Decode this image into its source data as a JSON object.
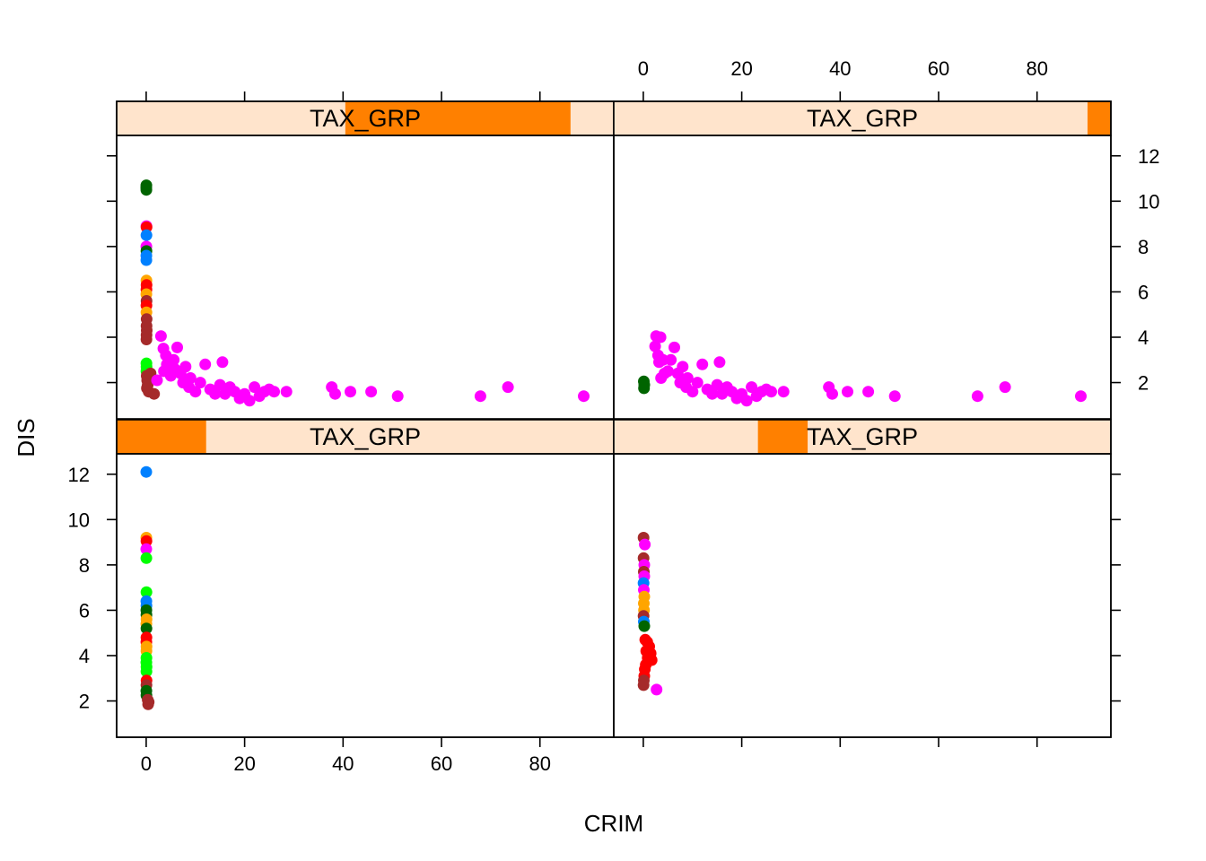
{
  "chart_data": {
    "type": "scatter",
    "layout": "trellis 2x2",
    "xlabel": "CRIM",
    "ylabel": "DIS",
    "xlim": [
      -6,
      95
    ],
    "ylim": [
      0.4,
      12.9
    ],
    "xticks": [
      0,
      20,
      40,
      60,
      80
    ],
    "yticks": [
      2,
      4,
      6,
      8,
      10,
      12
    ],
    "strip_fill": "#FFE4CC",
    "strip_bar": "#FF8000",
    "group_colors": {
      "g1": "#006400",
      "g2": "#0080FF",
      "g3": "#FF00FF",
      "g4": "#A52A2A",
      "g5": "#00FF00",
      "g6": "#FF0000",
      "g7": "#FFA500"
    },
    "panels": [
      {
        "id": "top-left",
        "strip_label": "TAX_GRP",
        "level_range": [
          0.46,
          0.913
        ],
        "points": [
          {
            "x": 0.02,
            "y": 10.6,
            "g": "g1"
          },
          {
            "x": 0.04,
            "y": 10.5,
            "g": "g1"
          },
          {
            "x": 0.03,
            "y": 10.7,
            "g": "g1"
          },
          {
            "x": 0.05,
            "y": 8.9,
            "g": "g3"
          },
          {
            "x": 0.08,
            "y": 8.85,
            "g": "g6"
          },
          {
            "x": 0.06,
            "y": 8.5,
            "g": "g2"
          },
          {
            "x": 0.04,
            "y": 8.0,
            "g": "g3"
          },
          {
            "x": 0.05,
            "y": 7.8,
            "g": "g1"
          },
          {
            "x": 0.03,
            "y": 7.6,
            "g": "g2"
          },
          {
            "x": 0.04,
            "y": 7.4,
            "g": "g2"
          },
          {
            "x": 0.06,
            "y": 6.5,
            "g": "g7"
          },
          {
            "x": 0.07,
            "y": 6.3,
            "g": "g6"
          },
          {
            "x": 0.05,
            "y": 6.1,
            "g": "g6"
          },
          {
            "x": 0.04,
            "y": 5.9,
            "g": "g7"
          },
          {
            "x": 0.08,
            "y": 5.6,
            "g": "g4"
          },
          {
            "x": 0.06,
            "y": 5.4,
            "g": "g6"
          },
          {
            "x": 0.05,
            "y": 5.1,
            "g": "g7"
          },
          {
            "x": 0.09,
            "y": 4.8,
            "g": "g4"
          },
          {
            "x": 0.07,
            "y": 4.5,
            "g": "g4"
          },
          {
            "x": 0.1,
            "y": 4.3,
            "g": "g4"
          },
          {
            "x": 0.08,
            "y": 4.1,
            "g": "g4"
          },
          {
            "x": 0.06,
            "y": 3.9,
            "g": "g4"
          },
          {
            "x": 0.05,
            "y": 2.85,
            "g": "g5"
          },
          {
            "x": 0.07,
            "y": 2.7,
            "g": "g5"
          },
          {
            "x": 0.06,
            "y": 2.5,
            "g": "g5"
          },
          {
            "x": 0.1,
            "y": 2.3,
            "g": "g4"
          },
          {
            "x": 0.2,
            "y": 2.1,
            "g": "g4"
          },
          {
            "x": 0.3,
            "y": 1.9,
            "g": "g4"
          },
          {
            "x": 0.15,
            "y": 1.75,
            "g": "g4"
          },
          {
            "x": 0.5,
            "y": 1.6,
            "g": "g4"
          },
          {
            "x": 1.6,
            "y": 1.5,
            "g": "g4"
          },
          {
            "x": 0.9,
            "y": 2.4,
            "g": "g4"
          },
          {
            "x": 2.2,
            "y": 2.1,
            "g": "g3"
          },
          {
            "x": 3.0,
            "y": 4.05,
            "g": "g3"
          },
          {
            "x": 3.5,
            "y": 3.5,
            "g": "g3"
          },
          {
            "x": 4.0,
            "y": 3.2,
            "g": "g3"
          },
          {
            "x": 4.2,
            "y": 2.8,
            "g": "g3"
          },
          {
            "x": 3.6,
            "y": 2.5,
            "g": "g3"
          },
          {
            "x": 5.0,
            "y": 2.3,
            "g": "g3"
          },
          {
            "x": 5.6,
            "y": 3.0,
            "g": "g3"
          },
          {
            "x": 5.8,
            "y": 2.6,
            "g": "g3"
          },
          {
            "x": 6.3,
            "y": 3.55,
            "g": "g3"
          },
          {
            "x": 7.0,
            "y": 2.4,
            "g": "g3"
          },
          {
            "x": 7.5,
            "y": 2.0,
            "g": "g3"
          },
          {
            "x": 8.0,
            "y": 2.7,
            "g": "g3"
          },
          {
            "x": 8.7,
            "y": 1.8,
            "g": "g3"
          },
          {
            "x": 9.0,
            "y": 2.2,
            "g": "g3"
          },
          {
            "x": 10.0,
            "y": 1.6,
            "g": "g3"
          },
          {
            "x": 11.0,
            "y": 2.0,
            "g": "g3"
          },
          {
            "x": 12.0,
            "y": 2.8,
            "g": "g3"
          },
          {
            "x": 13.0,
            "y": 1.7,
            "g": "g3"
          },
          {
            "x": 14.0,
            "y": 1.5,
            "g": "g3"
          },
          {
            "x": 15.0,
            "y": 1.9,
            "g": "g3"
          },
          {
            "x": 15.5,
            "y": 2.9,
            "g": "g3"
          },
          {
            "x": 16.0,
            "y": 1.5,
            "g": "g3"
          },
          {
            "x": 17.0,
            "y": 1.8,
            "g": "g3"
          },
          {
            "x": 18.0,
            "y": 1.6,
            "g": "g3"
          },
          {
            "x": 19.0,
            "y": 1.3,
            "g": "g3"
          },
          {
            "x": 20.0,
            "y": 1.5,
            "g": "g3"
          },
          {
            "x": 21.0,
            "y": 1.2,
            "g": "g3"
          },
          {
            "x": 22.0,
            "y": 1.8,
            "g": "g3"
          },
          {
            "x": 23.0,
            "y": 1.4,
            "g": "g3"
          },
          {
            "x": 24.0,
            "y": 1.6,
            "g": "g3"
          },
          {
            "x": 25.0,
            "y": 1.7,
            "g": "g3"
          },
          {
            "x": 26.0,
            "y": 1.6,
            "g": "g3"
          },
          {
            "x": 28.5,
            "y": 1.6,
            "g": "g3"
          },
          {
            "x": 37.7,
            "y": 1.8,
            "g": "g3"
          },
          {
            "x": 38.4,
            "y": 1.5,
            "g": "g3"
          },
          {
            "x": 41.5,
            "y": 1.6,
            "g": "g3"
          },
          {
            "x": 45.7,
            "y": 1.6,
            "g": "g3"
          },
          {
            "x": 51.1,
            "y": 1.4,
            "g": "g3"
          },
          {
            "x": 67.9,
            "y": 1.4,
            "g": "g3"
          },
          {
            "x": 73.5,
            "y": 1.8,
            "g": "g3"
          },
          {
            "x": 88.9,
            "y": 1.4,
            "g": "g3"
          }
        ]
      },
      {
        "id": "top-right",
        "strip_label": "TAX_GRP",
        "level_range": [
          0.953,
          1.0
        ],
        "points": [
          {
            "x": 0.1,
            "y": 2.05,
            "g": "g1"
          },
          {
            "x": 0.2,
            "y": 1.9,
            "g": "g1"
          },
          {
            "x": 0.15,
            "y": 1.75,
            "g": "g1"
          },
          {
            "x": 2.4,
            "y": 3.6,
            "g": "g3"
          },
          {
            "x": 2.6,
            "y": 4.05,
            "g": "g3"
          },
          {
            "x": 3.5,
            "y": 4.0,
            "g": "g3"
          },
          {
            "x": 3.0,
            "y": 3.2,
            "g": "g3"
          },
          {
            "x": 3.2,
            "y": 2.9,
            "g": "g3"
          },
          {
            "x": 4.0,
            "y": 3.0,
            "g": "g3"
          },
          {
            "x": 4.3,
            "y": 2.4,
            "g": "g3"
          },
          {
            "x": 3.6,
            "y": 2.2,
            "g": "g3"
          },
          {
            "x": 5.0,
            "y": 2.5,
            "g": "g3"
          },
          {
            "x": 5.6,
            "y": 3.0,
            "g": "g3"
          },
          {
            "x": 6.3,
            "y": 3.55,
            "g": "g3"
          },
          {
            "x": 7.0,
            "y": 2.4,
            "g": "g3"
          },
          {
            "x": 7.5,
            "y": 2.0,
            "g": "g3"
          },
          {
            "x": 8.0,
            "y": 2.7,
            "g": "g3"
          },
          {
            "x": 8.7,
            "y": 1.8,
            "g": "g3"
          },
          {
            "x": 9.0,
            "y": 2.2,
            "g": "g3"
          },
          {
            "x": 10.0,
            "y": 1.6,
            "g": "g3"
          },
          {
            "x": 11.0,
            "y": 2.0,
            "g": "g3"
          },
          {
            "x": 12.0,
            "y": 2.8,
            "g": "g3"
          },
          {
            "x": 13.0,
            "y": 1.7,
            "g": "g3"
          },
          {
            "x": 14.0,
            "y": 1.5,
            "g": "g3"
          },
          {
            "x": 15.0,
            "y": 1.9,
            "g": "g3"
          },
          {
            "x": 15.5,
            "y": 2.9,
            "g": "g3"
          },
          {
            "x": 16.0,
            "y": 1.5,
            "g": "g3"
          },
          {
            "x": 17.0,
            "y": 1.8,
            "g": "g3"
          },
          {
            "x": 18.0,
            "y": 1.6,
            "g": "g3"
          },
          {
            "x": 19.0,
            "y": 1.3,
            "g": "g3"
          },
          {
            "x": 20.0,
            "y": 1.5,
            "g": "g3"
          },
          {
            "x": 21.0,
            "y": 1.2,
            "g": "g3"
          },
          {
            "x": 22.0,
            "y": 1.8,
            "g": "g3"
          },
          {
            "x": 23.0,
            "y": 1.4,
            "g": "g3"
          },
          {
            "x": 24.0,
            "y": 1.6,
            "g": "g3"
          },
          {
            "x": 25.0,
            "y": 1.7,
            "g": "g3"
          },
          {
            "x": 26.0,
            "y": 1.6,
            "g": "g3"
          },
          {
            "x": 28.5,
            "y": 1.6,
            "g": "g3"
          },
          {
            "x": 37.7,
            "y": 1.8,
            "g": "g3"
          },
          {
            "x": 38.4,
            "y": 1.5,
            "g": "g3"
          },
          {
            "x": 41.5,
            "y": 1.6,
            "g": "g3"
          },
          {
            "x": 45.7,
            "y": 1.6,
            "g": "g3"
          },
          {
            "x": 51.1,
            "y": 1.4,
            "g": "g3"
          },
          {
            "x": 67.9,
            "y": 1.4,
            "g": "g3"
          },
          {
            "x": 73.5,
            "y": 1.8,
            "g": "g3"
          },
          {
            "x": 88.9,
            "y": 1.4,
            "g": "g3"
          }
        ]
      },
      {
        "id": "bottom-left",
        "strip_label": "TAX_GRP",
        "level_range": [
          0.0,
          0.18
        ],
        "points": [
          {
            "x": 0.02,
            "y": 12.1,
            "g": "g2"
          },
          {
            "x": 0.03,
            "y": 9.2,
            "g": "g7"
          },
          {
            "x": 0.05,
            "y": 9.05,
            "g": "g6"
          },
          {
            "x": 0.02,
            "y": 8.7,
            "g": "g3"
          },
          {
            "x": 0.04,
            "y": 8.3,
            "g": "g5"
          },
          {
            "x": 0.05,
            "y": 6.8,
            "g": "g5"
          },
          {
            "x": 0.03,
            "y": 6.4,
            "g": "g2"
          },
          {
            "x": 0.06,
            "y": 6.2,
            "g": "g2"
          },
          {
            "x": 0.04,
            "y": 6.0,
            "g": "g1"
          },
          {
            "x": 0.05,
            "y": 5.8,
            "g": "g1"
          },
          {
            "x": 0.07,
            "y": 5.6,
            "g": "g7"
          },
          {
            "x": 0.03,
            "y": 5.4,
            "g": "g7"
          },
          {
            "x": 0.05,
            "y": 5.2,
            "g": "g1"
          },
          {
            "x": 0.06,
            "y": 4.8,
            "g": "g6"
          },
          {
            "x": 0.04,
            "y": 4.6,
            "g": "g6"
          },
          {
            "x": 0.08,
            "y": 4.4,
            "g": "g7"
          },
          {
            "x": 0.05,
            "y": 4.2,
            "g": "g7"
          },
          {
            "x": 0.06,
            "y": 3.9,
            "g": "g5"
          },
          {
            "x": 0.04,
            "y": 3.7,
            "g": "g5"
          },
          {
            "x": 0.07,
            "y": 3.5,
            "g": "g5"
          },
          {
            "x": 0.05,
            "y": 3.3,
            "g": "g5"
          },
          {
            "x": 0.08,
            "y": 2.9,
            "g": "g6"
          },
          {
            "x": 0.06,
            "y": 2.7,
            "g": "g4"
          },
          {
            "x": 0.04,
            "y": 2.45,
            "g": "g1"
          },
          {
            "x": 0.05,
            "y": 2.25,
            "g": "g1"
          },
          {
            "x": 0.3,
            "y": 2.05,
            "g": "g4"
          },
          {
            "x": 0.5,
            "y": 1.95,
            "g": "g4"
          },
          {
            "x": 0.4,
            "y": 1.85,
            "g": "g4"
          }
        ]
      },
      {
        "id": "bottom-right",
        "strip_label": "TAX_GRP",
        "level_range": [
          0.29,
          0.39
        ],
        "points": [
          {
            "x": 0.05,
            "y": 9.2,
            "g": "g4"
          },
          {
            "x": 0.3,
            "y": 8.9,
            "g": "g3"
          },
          {
            "x": 0.06,
            "y": 8.3,
            "g": "g4"
          },
          {
            "x": 0.2,
            "y": 8.0,
            "g": "g3"
          },
          {
            "x": 0.1,
            "y": 7.7,
            "g": "g4"
          },
          {
            "x": 0.2,
            "y": 7.5,
            "g": "g3"
          },
          {
            "x": 0.05,
            "y": 7.2,
            "g": "g2"
          },
          {
            "x": 0.1,
            "y": 6.9,
            "g": "g3"
          },
          {
            "x": 0.2,
            "y": 6.6,
            "g": "g7"
          },
          {
            "x": 0.1,
            "y": 6.3,
            "g": "g7"
          },
          {
            "x": 0.15,
            "y": 6.0,
            "g": "g7"
          },
          {
            "x": 0.06,
            "y": 5.75,
            "g": "g4"
          },
          {
            "x": 0.1,
            "y": 5.5,
            "g": "g2"
          },
          {
            "x": 0.2,
            "y": 5.3,
            "g": "g1"
          },
          {
            "x": 0.4,
            "y": 4.7,
            "g": "g6"
          },
          {
            "x": 0.8,
            "y": 4.6,
            "g": "g6"
          },
          {
            "x": 1.2,
            "y": 4.4,
            "g": "g6"
          },
          {
            "x": 0.6,
            "y": 4.2,
            "g": "g6"
          },
          {
            "x": 1.5,
            "y": 4.1,
            "g": "g6"
          },
          {
            "x": 0.9,
            "y": 3.9,
            "g": "g6"
          },
          {
            "x": 1.7,
            "y": 3.8,
            "g": "g6"
          },
          {
            "x": 0.5,
            "y": 3.6,
            "g": "g6"
          },
          {
            "x": 0.3,
            "y": 3.4,
            "g": "g6"
          },
          {
            "x": 0.2,
            "y": 3.1,
            "g": "g6"
          },
          {
            "x": 0.1,
            "y": 2.9,
            "g": "g4"
          },
          {
            "x": 0.05,
            "y": 2.7,
            "g": "g4"
          },
          {
            "x": 2.7,
            "y": 2.5,
            "g": "g3"
          }
        ]
      }
    ]
  }
}
